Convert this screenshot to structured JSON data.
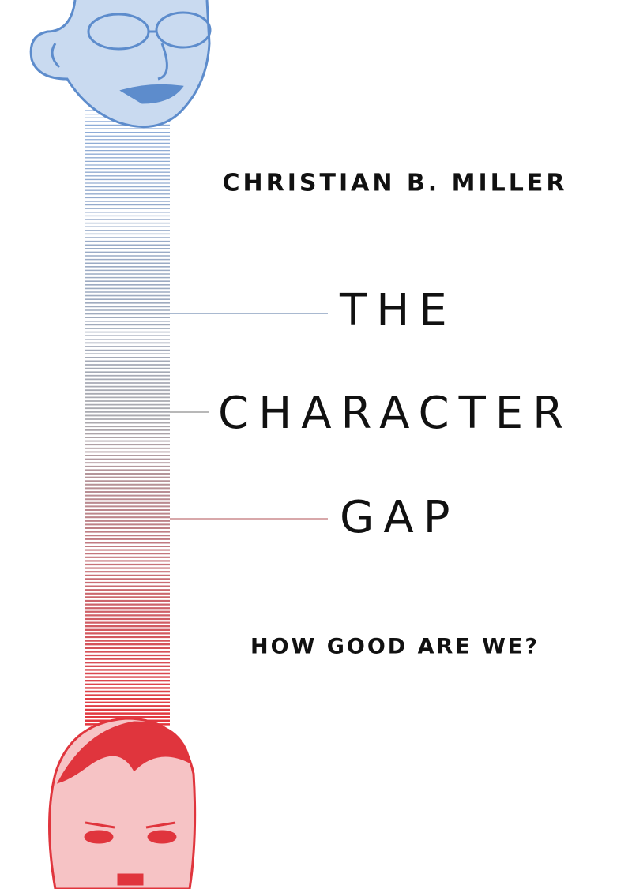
{
  "cover": {
    "author": "CHRISTIAN B. MILLER",
    "title_lines": [
      "THE",
      "CHARACTER",
      "GAP"
    ],
    "subtitle": "HOW GOOD ARE WE?"
  }
}
